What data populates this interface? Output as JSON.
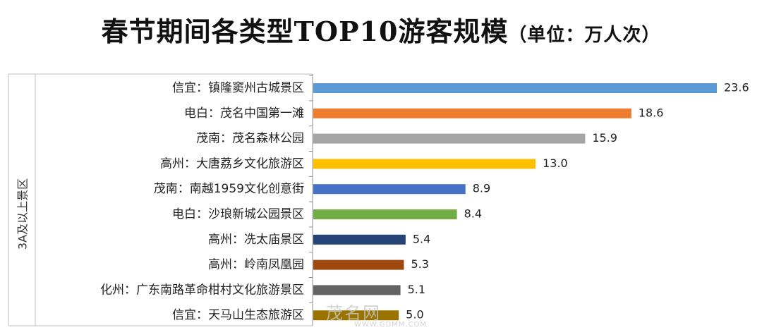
{
  "chart_data": {
    "type": "bar",
    "orientation": "horizontal",
    "title": "春节期间各类型TOP10游客规模",
    "subtitle": "（单位：万人次）",
    "group_label": "3A及以上景区",
    "categories": [
      "信宜：镇隆窦州古城景区",
      "电白：茂名中国第一滩",
      "茂南：茂名森林公园",
      "高州：大唐荔乡文化旅游区",
      "茂南：南越1959文化创意街",
      "电白：沙琅新城公园景区",
      "高州：冼太庙景区",
      "高州：岭南凤凰园",
      "化州：广东南路革命柑村文化旅游景区",
      "信宜：天马山生态旅游区"
    ],
    "values": [
      23.6,
      18.6,
      15.9,
      13.0,
      8.9,
      8.4,
      5.4,
      5.3,
      5.1,
      5.0
    ],
    "value_labels": [
      "23.6",
      "18.6",
      "15.9",
      "13.0",
      "8.9",
      "8.4",
      "5.4",
      "5.3",
      "5.1",
      "5.0"
    ],
    "colors": [
      "#5B9BD5",
      "#ED7D31",
      "#A5A5A5",
      "#FFC000",
      "#4472C4",
      "#70AD47",
      "#264478",
      "#9E480E",
      "#636363",
      "#997300"
    ],
    "xlim": [
      0,
      23.6
    ],
    "grid": false,
    "legend": "none"
  },
  "watermark": {
    "text": "茂名网",
    "url": "WWW.GDMM.COM"
  }
}
